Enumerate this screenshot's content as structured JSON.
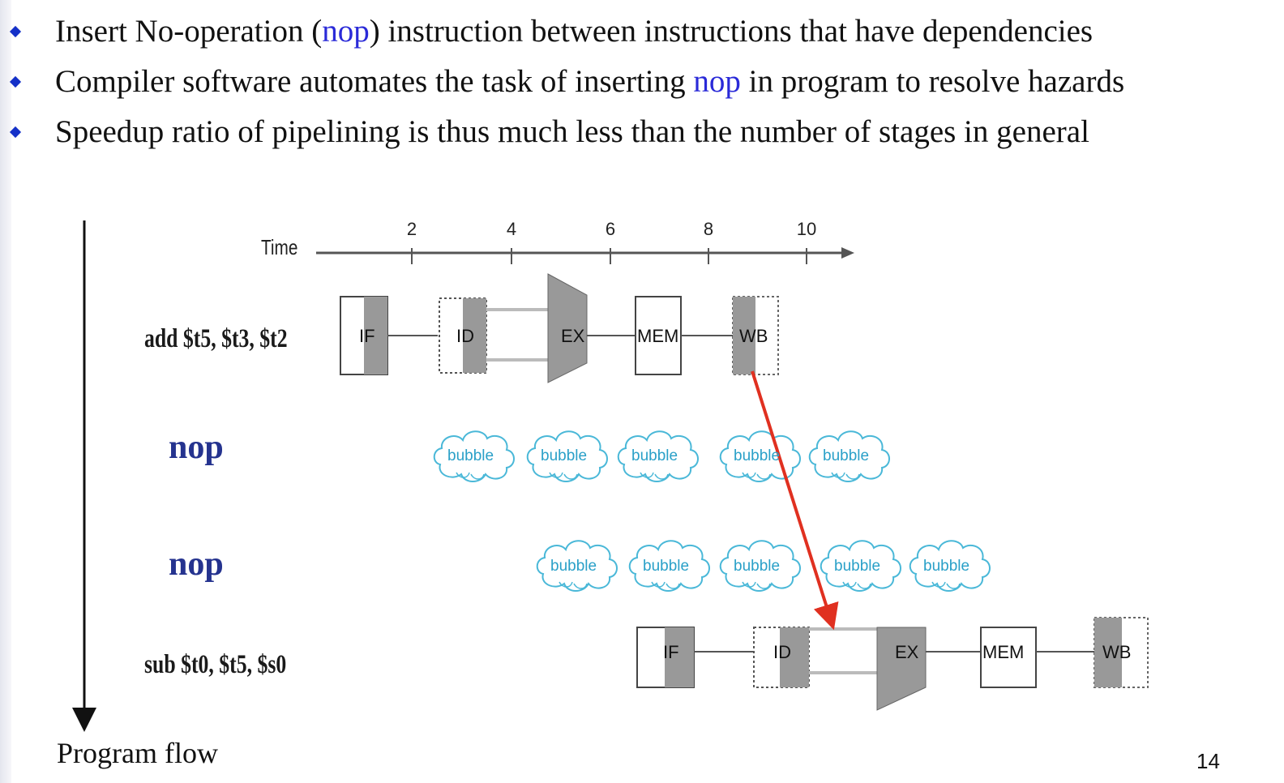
{
  "bullets": [
    {
      "before": "Insert No-operation (",
      "highlight": "nop",
      "after": ") instruction between instructions that have dependencies"
    },
    {
      "before": "Compiler software automates the task of inserting ",
      "highlight": "nop",
      "after": " in program to resolve hazards"
    },
    {
      "before": "Speedup ratio of pipelining is thus much less than the number of stages in general",
      "highlight": "",
      "after": ""
    }
  ],
  "diagram": {
    "time_label": "Time",
    "time_ticks": [
      "2",
      "4",
      "6",
      "8",
      "10"
    ],
    "instructions": {
      "add": "add $t5, $t3, $t2",
      "nop1": "nop",
      "nop2": "nop",
      "sub": "sub $t0, $t5, $s0"
    },
    "stages": {
      "if": "IF",
      "id": "ID",
      "ex": "EX",
      "mem": "MEM",
      "wb": "WB"
    },
    "bubble": "bubble",
    "program_flow": "Program flow",
    "colors": {
      "hazard_arrow": "#e03020",
      "bubble": "#4ab8d8",
      "stage_fill": "#999999"
    }
  },
  "page_number": "14"
}
